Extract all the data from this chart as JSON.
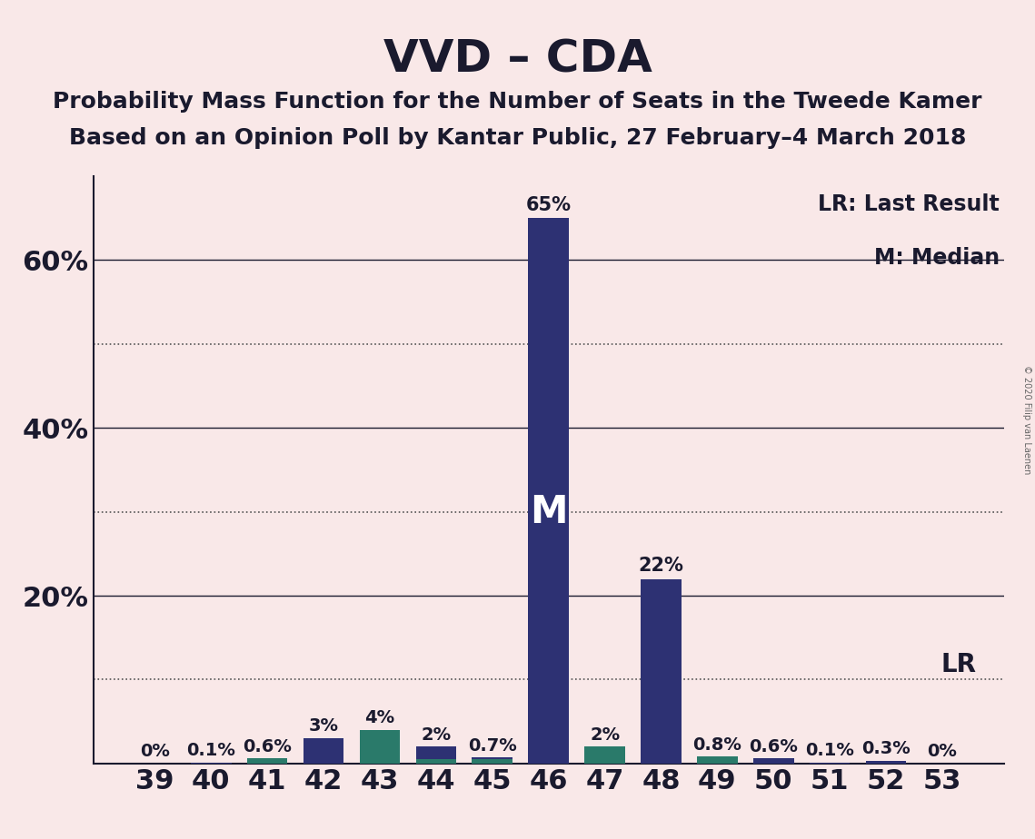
{
  "title": "VVD – CDA",
  "subtitle1": "Probability Mass Function for the Number of Seats in the Tweede Kamer",
  "subtitle2": "Based on an Opinion Poll by Kantar Public, 27 February–4 March 2018",
  "copyright": "© 2020 Filip van Laenen",
  "categories": [
    39,
    40,
    41,
    42,
    43,
    44,
    45,
    46,
    47,
    48,
    49,
    50,
    51,
    52,
    53
  ],
  "navy_values": [
    0.0,
    0.1,
    0.6,
    3.0,
    4.0,
    2.0,
    0.7,
    65.0,
    2.0,
    22.0,
    0.8,
    0.6,
    0.1,
    0.3,
    0.0
  ],
  "green_values": [
    0.0,
    0.0,
    0.6,
    0.0,
    4.0,
    0.5,
    0.5,
    0.0,
    2.0,
    0.0,
    0.8,
    0.0,
    0.0,
    0.0,
    0.0
  ],
  "navy_color": "#2d3173",
  "green_color": "#2a7a6a",
  "background_color": "#f9e8e8",
  "bar_labels": [
    "0%",
    "0.1%",
    "0.6%",
    "3%",
    "4%",
    "2%",
    "0.7%",
    "65%",
    "2%",
    "22%",
    "0.8%",
    "0.6%",
    "0.1%",
    "0.3%",
    "0%"
  ],
  "lr_value": 10.0,
  "median_seat": 46,
  "ylim": [
    0,
    70
  ],
  "solid_lines": [
    20,
    40,
    60
  ],
  "dotted_lines": [
    10,
    30,
    50
  ],
  "legend_lr": "LR: Last Result",
  "legend_m": "M: Median",
  "title_fontsize": 36,
  "subtitle_fontsize": 18,
  "axis_fontsize": 22,
  "label_fontsize": 14
}
